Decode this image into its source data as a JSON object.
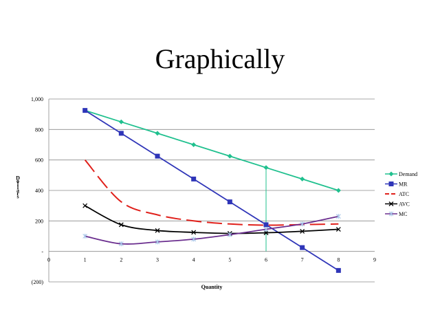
{
  "slide": {
    "title": "Graphically"
  },
  "chart_data": {
    "type": "line",
    "title": "",
    "xlabel": "Quantity",
    "ylabel": "Dollars",
    "xlim": [
      0,
      9
    ],
    "ylim": [
      -200,
      1000
    ],
    "x_ticks": [
      "0",
      "1",
      "2",
      "3",
      "4",
      "5",
      "6",
      "7",
      "8",
      "9"
    ],
    "y_ticks": [
      {
        "value": 1000,
        "label": "1,000"
      },
      {
        "value": 800,
        "label": "800"
      },
      {
        "value": 600,
        "label": "600"
      },
      {
        "value": 400,
        "label": "400"
      },
      {
        "value": 200,
        "label": "200"
      },
      {
        "value": 0,
        "label": "-"
      },
      {
        "value": -200,
        "label": "(200)"
      }
    ],
    "grid": true,
    "legend_position": "right",
    "series": [
      {
        "name": "Demand",
        "color": "#1fc08e",
        "marker": "diamond",
        "dash": false,
        "smooth": false,
        "x": [
          1,
          2,
          3,
          4,
          5,
          6,
          7,
          8
        ],
        "y": [
          925,
          850,
          775,
          700,
          625,
          550,
          475,
          400
        ]
      },
      {
        "name": "MR",
        "color": "#2f35b8",
        "marker": "square",
        "dash": false,
        "smooth": false,
        "x": [
          1,
          2,
          3,
          4,
          5,
          6,
          7,
          8
        ],
        "y": [
          925,
          775,
          625,
          475,
          325,
          175,
          25,
          -125
        ]
      },
      {
        "name": "ATC",
        "color": "#e0201b",
        "marker": "none",
        "dash": true,
        "smooth": true,
        "x": [
          1,
          2,
          3,
          4,
          5,
          6,
          7,
          8
        ],
        "y": [
          600,
          325,
          240,
          200,
          180,
          172,
          176,
          180
        ]
      },
      {
        "name": "AVC",
        "color": "#000000",
        "marker": "x",
        "dash": false,
        "smooth": true,
        "x": [
          1,
          2,
          3,
          4,
          5,
          6,
          7,
          8
        ],
        "y": [
          300,
          175,
          137,
          125,
          118,
          122,
          132,
          145
        ]
      },
      {
        "name": "MC",
        "color": "#6a2d8e",
        "marker": "star",
        "dash": false,
        "smooth": true,
        "x": [
          1,
          2,
          3,
          4,
          5,
          6,
          7,
          8
        ],
        "y": [
          100,
          50,
          62,
          80,
          110,
          145,
          180,
          230
        ]
      }
    ],
    "annotations": [
      {
        "type": "vertical-line",
        "x": 6,
        "y_from": 0,
        "y_to": 550,
        "color": "#1fc08e"
      }
    ]
  }
}
